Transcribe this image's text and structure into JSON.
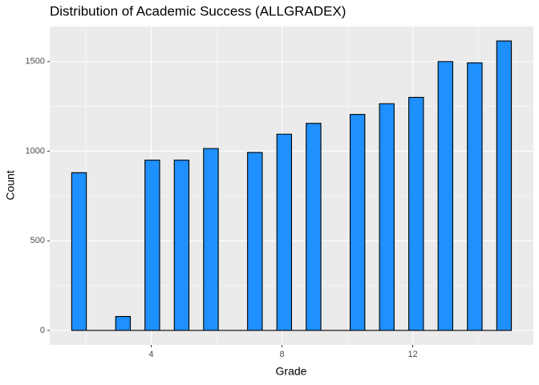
{
  "chart_data": {
    "type": "histogram",
    "title": "Distribution of Academic Success (ALLGRADEX)",
    "x_label": "Grade",
    "y_label": "Count",
    "bins": [
      1.569,
      2.017,
      2.466,
      2.914,
      3.362,
      3.81,
      4.259,
      4.707,
      5.155,
      5.603,
      6.052,
      6.5,
      6.948,
      7.397,
      7.845,
      8.293,
      8.741,
      9.19,
      9.638,
      10.086,
      10.534,
      10.983,
      11.431,
      11.879,
      12.328,
      12.776,
      13.224,
      13.672,
      14.121,
      14.569,
      15.017
    ],
    "values": [
      880,
      0,
      0,
      78,
      0,
      950,
      0,
      950,
      0,
      1015,
      0,
      0,
      993,
      0,
      1095,
      0,
      1155,
      0,
      0,
      1205,
      0,
      1265,
      0,
      1300,
      0,
      1500,
      0,
      1493,
      0,
      1615
    ],
    "color": "#1e90ff",
    "edge_color": "#000000",
    "xlim": [
      0.897,
      15.69
    ],
    "xticks": [
      4,
      8,
      12
    ],
    "ylim": [
      -80.75,
      1695.75
    ],
    "yticks": [
      0,
      500,
      1000,
      1500
    ],
    "grid": true
  }
}
